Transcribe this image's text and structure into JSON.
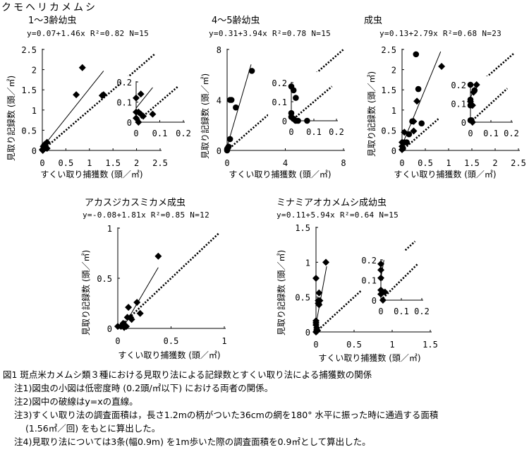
{
  "figure_title": "クモヘリカメムシ",
  "chart_data": [
    {
      "type": "scatter",
      "title": "1～3齢幼虫",
      "equation": "y=0.07+1.46x  R²=0.82  N=15",
      "xlabel": "すくい取り捕獲数 (頭／㎡)",
      "ylabel": "見取り記録数 (頭／㎡)",
      "xlim": [
        0,
        2.5
      ],
      "ylim": [
        0,
        2.5
      ],
      "xticks": [
        "0",
        "0.5",
        "1",
        "1.5",
        "2",
        "2.5"
      ],
      "yticks": [
        "0",
        "0.5",
        "1",
        "1.5",
        "2",
        "2.5"
      ],
      "fit": {
        "a": 0.07,
        "b": 1.46,
        "xrange": [
          0.05,
          1.3
        ]
      },
      "identity_range": [
        0,
        2.4
      ],
      "points": [
        [
          0.85,
          2.05
        ],
        [
          0.72,
          1.38
        ],
        [
          1.27,
          1.36
        ],
        [
          1.3,
          1.38
        ],
        [
          0.1,
          0.2
        ],
        [
          0.05,
          0.15
        ],
        [
          0.02,
          0.1
        ],
        [
          0.08,
          0.07
        ],
        [
          0.05,
          0.05
        ],
        [
          0,
          0.02
        ],
        [
          0.03,
          0.03
        ],
        [
          0.06,
          0.12
        ],
        [
          0.01,
          0
        ],
        [
          0.04,
          0.08
        ],
        [
          0.1,
          0.05
        ]
      ],
      "marker": "diamond",
      "inset": {
        "xlim": [
          0,
          0.2
        ],
        "ylim": [
          0,
          0.2
        ],
        "xticks": [
          "0",
          "0.1",
          "0.2"
        ],
        "yticks": [
          "0",
          "0.1",
          "0.2"
        ],
        "fit": {
          "a": 0.07,
          "b": 1.46,
          "xrange": [
            0,
            0.07
          ]
        },
        "identity_range": [
          0.01,
          0.18
        ],
        "points": [
          [
            0,
            0.12
          ],
          [
            0.02,
            0.14
          ],
          [
            0,
            0.05
          ],
          [
            0.01,
            0.05
          ],
          [
            0,
            0.02
          ],
          [
            0.02,
            0.04
          ],
          [
            0.03,
            0.03
          ],
          [
            0.07,
            0.04
          ],
          [
            0.01,
            0
          ]
        ]
      }
    },
    {
      "type": "scatter",
      "title": "4～5齢幼虫",
      "equation": "y=0.31+3.94x  R²=0.78  N=15",
      "xlabel": "すくい取り捕獲数 (頭／㎡)",
      "ylabel": "見取り記録数 (頭／㎡)",
      "xlim": [
        0,
        8
      ],
      "ylim": [
        0,
        8
      ],
      "xticks": [
        "0",
        "4",
        "8"
      ],
      "yticks": [
        "0",
        "4",
        "8"
      ],
      "fit": {
        "a": 0.31,
        "b": 3.94,
        "xrange": [
          0,
          1.65
        ]
      },
      "identity_range": [
        0,
        8
      ],
      "points": [
        [
          1.7,
          6.3
        ],
        [
          0.2,
          4.0
        ],
        [
          0.3,
          4.0
        ],
        [
          0.6,
          3.4
        ],
        [
          0.2,
          0.9
        ],
        [
          0,
          0.1
        ],
        [
          0.05,
          0.2
        ],
        [
          0.1,
          0.3
        ],
        [
          0,
          0
        ]
      ],
      "marker": "circle",
      "inset": {
        "xlim": [
          0,
          0.2
        ],
        "ylim": [
          0,
          0.2
        ],
        "xticks": [
          "0",
          "0.1",
          "0.2"
        ],
        "yticks": [
          "0",
          "0.1",
          "0.2"
        ],
        "fit": null,
        "identity_range": [
          0.01,
          0.18
        ],
        "points": [
          [
            0,
            0.18
          ],
          [
            0.01,
            0.16
          ],
          [
            0.02,
            0.12
          ],
          [
            0,
            0.04
          ],
          [
            0,
            0.02
          ],
          [
            0.01,
            0.01
          ],
          [
            0.02,
            0
          ],
          [
            0.07,
            0
          ],
          [
            0.03,
            0
          ]
        ]
      }
    },
    {
      "type": "scatter",
      "title": "成虫",
      "equation": "y=0.13+2.79x  R²=0.68  N=23",
      "xlabel": "すくい取り捕獲数 (頭／㎡)",
      "ylabel": "見取り記録数 (頭／㎡)",
      "xlim": [
        0,
        2.5
      ],
      "ylim": [
        0,
        2.5
      ],
      "xticks": [
        "0",
        "0.5",
        "1",
        "1.5",
        "2",
        "2.5"
      ],
      "yticks": [
        "0",
        "0.5",
        "1",
        "1.5",
        "2",
        "2.5"
      ],
      "fit": {
        "a": 0.13,
        "b": 2.79,
        "xrange": [
          0,
          0.83
        ]
      },
      "identity_range": [
        0,
        2.4
      ],
      "points": [
        [
          0.3,
          2.38
        ],
        [
          0.85,
          2.08
        ],
        [
          0.35,
          1.52
        ],
        [
          0.32,
          1.22
        ],
        [
          0.22,
          0.72
        ],
        [
          0.25,
          0.72
        ],
        [
          0.42,
          0.67
        ],
        [
          0.25,
          0.48
        ],
        [
          0.15,
          0.4
        ],
        [
          0.05,
          0.45
        ],
        [
          0.1,
          0.2
        ],
        [
          0,
          0.2
        ],
        [
          0.05,
          0.2
        ],
        [
          0,
          0.1
        ],
        [
          0.02,
          0.05
        ],
        [
          0,
          0.02
        ]
      ],
      "marker": "mixed",
      "inset": {
        "xlim": [
          0,
          0.2
        ],
        "ylim": [
          0,
          0.2
        ],
        "xticks": [
          "0",
          "0.1",
          "0.2"
        ],
        "yticks": [
          "0",
          "0.1",
          "0.2"
        ],
        "fit": {
          "a": 0.13,
          "b": 2.79,
          "xrange": [
            0,
            0.025
          ]
        },
        "identity_range": [
          0.01,
          0.18
        ],
        "points": [
          [
            0,
            0.2
          ],
          [
            0.03,
            0.2
          ],
          [
            0.02,
            0.17
          ],
          [
            0.015,
            0.16
          ],
          [
            0,
            0.12
          ],
          [
            0,
            0.11
          ],
          [
            0,
            0.09
          ],
          [
            0.01,
            0.09
          ],
          [
            0,
            0.01
          ],
          [
            0.01,
            0
          ],
          [
            0.005,
            0.01
          ]
        ]
      }
    },
    {
      "type": "scatter",
      "title": "アカスジカスミカメ成虫",
      "equation": "y=-0.08+1.81x  R²=0.85  N=12",
      "xlabel": "すくい取り捕獲数 (頭／㎡)",
      "ylabel": "見取り記録数 (頭／㎡)",
      "xlim": [
        0,
        1
      ],
      "ylim": [
        0,
        1
      ],
      "xticks": [
        "0",
        "0.5",
        "1"
      ],
      "yticks": [
        "0",
        "0.5",
        "1"
      ],
      "fit": {
        "a": -0.08,
        "b": 1.81,
        "xrange": [
          0.05,
          0.38
        ]
      },
      "identity_range": [
        0,
        0.95
      ],
      "points": [
        [
          0.38,
          0.72
        ],
        [
          0.18,
          0.26
        ],
        [
          0.1,
          0.21
        ],
        [
          0.21,
          0.15
        ],
        [
          0.09,
          0.11
        ],
        [
          0.12,
          0.11
        ],
        [
          0.13,
          0.09
        ],
        [
          0,
          0.02
        ],
        [
          0.05,
          0.05
        ],
        [
          0.03,
          0.02
        ],
        [
          0.06,
          0.01
        ],
        [
          0.08,
          0.02
        ]
      ],
      "marker": "diamond",
      "inset": null
    },
    {
      "type": "scatter",
      "title": "ミナミアオカメムシ成幼虫",
      "equation": "y=0.11+5.94x  R²=0.64  N=15",
      "xlabel": "すくい取り捕獲数 (頭／㎡)",
      "ylabel": "見取り記録数 (頭／㎡)",
      "xlim": [
        0,
        1.5
      ],
      "ylim": [
        0,
        1.5
      ],
      "xticks": [
        "0",
        "0.5",
        "1",
        "1.5"
      ],
      "yticks": [
        "0",
        "0.5",
        "1",
        "1.5"
      ],
      "fit": {
        "a": 0.11,
        "b": 5.94,
        "xrange": [
          0,
          0.14
        ]
      },
      "identity_range": [
        0,
        1.3
      ],
      "points": [
        [
          0.13,
          1.0
        ],
        [
          0,
          0.77
        ],
        [
          0.04,
          0.56
        ],
        [
          0.03,
          0.45
        ],
        [
          0.05,
          0.45
        ],
        [
          0.03,
          0.41
        ],
        [
          0.04,
          0.39
        ],
        [
          0,
          0.16
        ],
        [
          0,
          0.13
        ],
        [
          0,
          0.1
        ],
        [
          0.01,
          0.06
        ],
        [
          0.01,
          0.03
        ],
        [
          0.02,
          0.02
        ],
        [
          0.01,
          0.01
        ],
        [
          0,
          0
        ]
      ],
      "marker": "diamond",
      "inset": {
        "xlim": [
          0,
          0.2
        ],
        "ylim": [
          0,
          0.2
        ],
        "xticks": [
          "0",
          "0.1",
          "0.2"
        ],
        "yticks": [
          "0",
          "0.1",
          "0.2"
        ],
        "fit": {
          "a": 0.11,
          "b": 5.94,
          "xrange": [
            0,
            0.015
          ]
        },
        "identity_range": [
          0.01,
          0.18
        ],
        "points": [
          [
            0,
            0.18
          ],
          [
            0,
            0.15
          ],
          [
            0,
            0.11
          ],
          [
            0,
            0.05
          ],
          [
            0.01,
            0.04
          ],
          [
            0.02,
            0.04
          ],
          [
            0,
            0.03
          ],
          [
            0.01,
            0
          ]
        ]
      }
    }
  ],
  "caption": {
    "title": "図1 斑点米カメムシ類３種における見取り法による記録数とすくい取り法による捕獲数の関係",
    "notes": [
      "注1)図虫の小図は低密度時 (0.2頭/㎡以下) における両者の関係。",
      "注2)図中の破線はy=xの直線。",
      "注3)すくい取り法の調査面積は，長さ1.2mの柄がついた36cmの網を180° 水平に振った時に通過する面積",
      "(1.56㎡／回) をもとに算出した。",
      "注4)見取り法については3条(幅0.9m) を1m歩いた際の調査面積を0.9㎡として算出した。"
    ]
  }
}
